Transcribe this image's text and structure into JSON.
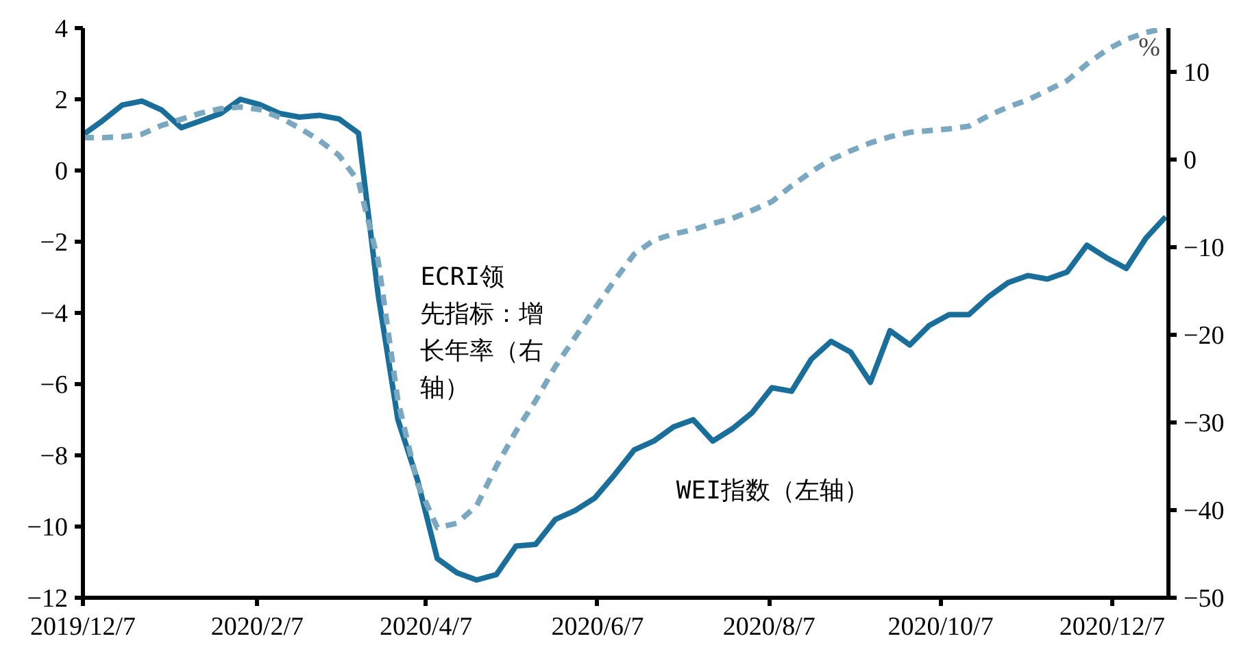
{
  "chart_data": {
    "type": "line",
    "x": [
      "2019-12-07",
      "2019-12-14",
      "2019-12-21",
      "2019-12-28",
      "2020-01-04",
      "2020-01-11",
      "2020-01-18",
      "2020-01-25",
      "2020-02-01",
      "2020-02-08",
      "2020-02-15",
      "2020-02-22",
      "2020-02-29",
      "2020-03-07",
      "2020-03-14",
      "2020-03-21",
      "2020-03-28",
      "2020-04-04",
      "2020-04-11",
      "2020-04-18",
      "2020-04-25",
      "2020-05-02",
      "2020-05-09",
      "2020-05-16",
      "2020-05-23",
      "2020-05-30",
      "2020-06-06",
      "2020-06-13",
      "2020-06-20",
      "2020-06-27",
      "2020-07-04",
      "2020-07-11",
      "2020-07-18",
      "2020-07-25",
      "2020-08-01",
      "2020-08-08",
      "2020-08-15",
      "2020-08-22",
      "2020-08-29",
      "2020-09-05",
      "2020-09-12",
      "2020-09-19",
      "2020-09-26",
      "2020-10-03",
      "2020-10-10",
      "2020-10-17",
      "2020-10-24",
      "2020-10-31",
      "2020-11-07",
      "2020-11-14",
      "2020-11-21",
      "2020-11-28",
      "2020-12-05",
      "2020-12-12",
      "2020-12-19",
      "2020-12-26"
    ],
    "series": [
      {
        "name": "WEI指数（左轴）",
        "color": "#1a6e9a",
        "line_style": "solid",
        "values": [
          1.0,
          1.4,
          1.84,
          1.95,
          1.7,
          1.2,
          1.4,
          1.6,
          2.0,
          1.85,
          1.6,
          1.5,
          1.55,
          1.45,
          1.05,
          -3.5,
          -7.0,
          -8.7,
          -10.9,
          -11.3,
          -11.5,
          -11.35,
          -10.55,
          -10.5,
          -9.8,
          -9.55,
          -9.2,
          -8.55,
          -7.85,
          -7.6,
          -7.2,
          -7.0,
          -7.6,
          -7.25,
          -6.8,
          -6.1,
          -6.2,
          -5.3,
          -4.8,
          -5.1,
          -5.95,
          -4.5,
          -4.9,
          -4.35,
          -4.05,
          -4.05,
          -3.55,
          -3.15,
          -2.95,
          -3.05,
          -2.85,
          -2.1,
          -2.45,
          -2.75,
          -1.9,
          -1.3
        ]
      },
      {
        "name": "ECRI领先指标：增长年率（右轴）",
        "color": "#7aa8c0",
        "line_style": "dashed",
        "axis": "y2",
        "values": [
          2.5,
          2.5,
          2.6,
          2.9,
          3.9,
          4.6,
          5.3,
          5.8,
          6.0,
          5.7,
          4.8,
          3.6,
          2.2,
          0.5,
          -2.5,
          -11.6,
          -27.5,
          -37,
          -42,
          -41.5,
          -39.5,
          -35,
          -31,
          -27.5,
          -23.6,
          -20.3,
          -17,
          -13.8,
          -10.8,
          -9.2,
          -8.5,
          -8.0,
          -7.3,
          -6.7,
          -5.8,
          -4.8,
          -3.0,
          -1.4,
          0.0,
          1.0,
          1.9,
          2.6,
          3.1,
          3.3,
          3.5,
          3.8,
          5.0,
          6.0,
          6.8,
          7.9,
          9.0,
          10.9,
          12.5,
          13.7,
          14.5,
          15.0
        ]
      }
    ],
    "xlim": [
      "2019-12-07",
      "2020-12-27"
    ],
    "xticks": [
      {
        "value": "2019-12-07",
        "label": "2019/12/7"
      },
      {
        "value": "2020-02-07",
        "label": "2020/2/7"
      },
      {
        "value": "2020-04-07",
        "label": "2020/4/7"
      },
      {
        "value": "2020-06-07",
        "label": "2020/6/7"
      },
      {
        "value": "2020-08-07",
        "label": "2020/8/7"
      },
      {
        "value": "2020-10-07",
        "label": "2020/10/7"
      },
      {
        "value": "2020-12-07",
        "label": "2020/12/7"
      }
    ],
    "ylim": [
      -12,
      4
    ],
    "yticks": [
      -12,
      -10,
      -8,
      -6,
      -4,
      -2,
      0,
      2,
      4
    ],
    "y2lim": [
      -50,
      15
    ],
    "y2ticks": [
      -50,
      -40,
      -30,
      -20,
      -10,
      0,
      10
    ],
    "y2label": "%",
    "grid": false,
    "legend": false
  }
}
